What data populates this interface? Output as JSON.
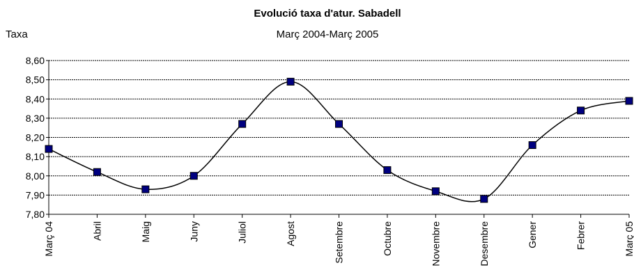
{
  "chart_data": {
    "type": "line",
    "title": "Evolució taxa d'atur. Sabadell",
    "subtitle": "Març 2004-Març 2005",
    "ylabel": "Taxa",
    "categories": [
      "Març 04",
      "Abril",
      "Maig",
      "Juny",
      "Juliol",
      "Agost",
      "Setembre",
      "Octubre",
      "Novembre",
      "Desembre",
      "Gener",
      "Febrer",
      "Març 05"
    ],
    "series": [
      {
        "name": "Taxa",
        "color": "#000080",
        "values": [
          8.14,
          8.02,
          7.93,
          8.0,
          8.27,
          8.49,
          8.27,
          8.03,
          7.92,
          7.88,
          8.16,
          8.34,
          8.39
        ]
      }
    ],
    "ylim": [
      7.8,
      8.6
    ],
    "yticks": [
      {
        "value": 7.8,
        "label": "7,80"
      },
      {
        "value": 7.9,
        "label": "7,90"
      },
      {
        "value": 8.0,
        "label": "8,00"
      },
      {
        "value": 8.1,
        "label": "8,10"
      },
      {
        "value": 8.2,
        "label": "8,20"
      },
      {
        "value": 8.3,
        "label": "8,30"
      },
      {
        "value": 8.4,
        "label": "8,40"
      },
      {
        "value": 8.5,
        "label": "8,50"
      },
      {
        "value": 8.6,
        "label": "8,60"
      }
    ],
    "grid": true
  }
}
